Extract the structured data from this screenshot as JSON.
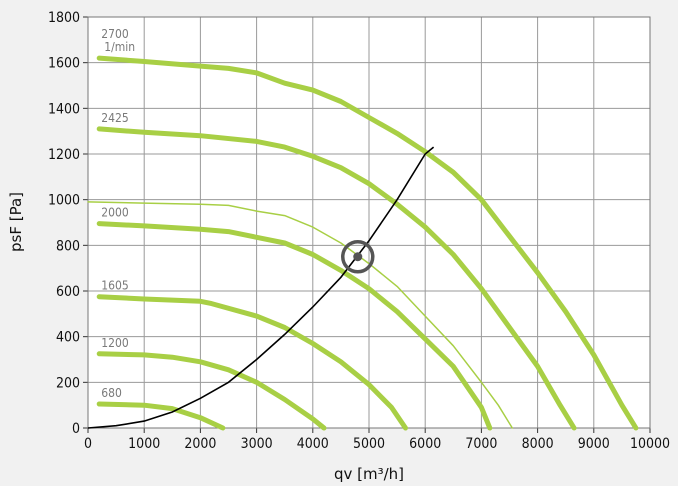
{
  "chart_data": {
    "type": "line",
    "title": "",
    "xlabel": "qv [m³/h]",
    "ylabel": "psF [Pa]",
    "xlim": [
      0,
      10000
    ],
    "ylim": [
      0,
      1800
    ],
    "xticks": [
      0,
      1000,
      2000,
      3000,
      4000,
      5000,
      6000,
      7000,
      8000,
      9000,
      10000
    ],
    "yticks": [
      0,
      200,
      400,
      600,
      800,
      1000,
      1200,
      1400,
      1600,
      1800
    ],
    "grid": true,
    "curve_color": "#a8cf45",
    "system_curve_color": "#000000",
    "operating_point_color": "#555555",
    "series": [
      {
        "label_lines": [
          "2700",
          "1/min"
        ],
        "style": "thick",
        "points": [
          [
            200,
            1620
          ],
          [
            1000,
            1605
          ],
          [
            2000,
            1585
          ],
          [
            2500,
            1575
          ],
          [
            3000,
            1555
          ],
          [
            3500,
            1510
          ],
          [
            4000,
            1480
          ],
          [
            4500,
            1430
          ],
          [
            5000,
            1360
          ],
          [
            5500,
            1290
          ],
          [
            6000,
            1210
          ],
          [
            6500,
            1120
          ],
          [
            7000,
            1000
          ],
          [
            7500,
            840
          ],
          [
            8000,
            680
          ],
          [
            8500,
            510
          ],
          [
            9000,
            320
          ],
          [
            9500,
            100
          ],
          [
            9750,
            0
          ]
        ]
      },
      {
        "label_lines": [
          "2425"
        ],
        "style": "thick",
        "points": [
          [
            200,
            1310
          ],
          [
            1000,
            1295
          ],
          [
            2000,
            1280
          ],
          [
            3000,
            1255
          ],
          [
            3500,
            1230
          ],
          [
            4000,
            1190
          ],
          [
            4500,
            1140
          ],
          [
            5000,
            1070
          ],
          [
            5500,
            980
          ],
          [
            6000,
            880
          ],
          [
            6500,
            760
          ],
          [
            7000,
            610
          ],
          [
            7500,
            440
          ],
          [
            8000,
            270
          ],
          [
            8400,
            100
          ],
          [
            8650,
            0
          ]
        ]
      },
      {
        "label_lines": [],
        "style": "thin",
        "points": [
          [
            0,
            990
          ],
          [
            1000,
            985
          ],
          [
            2000,
            980
          ],
          [
            2500,
            975
          ],
          [
            3000,
            950
          ],
          [
            3500,
            930
          ],
          [
            4000,
            880
          ],
          [
            4500,
            810
          ],
          [
            5000,
            720
          ],
          [
            5500,
            620
          ],
          [
            6000,
            490
          ],
          [
            6500,
            360
          ],
          [
            7000,
            200
          ],
          [
            7300,
            100
          ],
          [
            7550,
            0
          ]
        ]
      },
      {
        "label_lines": [
          "2000"
        ],
        "style": "thick",
        "points": [
          [
            200,
            895
          ],
          [
            1000,
            885
          ],
          [
            2000,
            870
          ],
          [
            2500,
            860
          ],
          [
            3000,
            835
          ],
          [
            3500,
            810
          ],
          [
            4000,
            760
          ],
          [
            4500,
            690
          ],
          [
            5000,
            610
          ],
          [
            5500,
            510
          ],
          [
            6000,
            390
          ],
          [
            6500,
            270
          ],
          [
            7000,
            90
          ],
          [
            7150,
            0
          ]
        ]
      },
      {
        "label_lines": [
          "1605"
        ],
        "style": "thick",
        "points": [
          [
            200,
            575
          ],
          [
            1000,
            565
          ],
          [
            2000,
            555
          ],
          [
            2200,
            545
          ],
          [
            3000,
            490
          ],
          [
            3500,
            440
          ],
          [
            4000,
            370
          ],
          [
            4500,
            290
          ],
          [
            5000,
            190
          ],
          [
            5400,
            90
          ],
          [
            5650,
            0
          ]
        ]
      },
      {
        "label_lines": [
          "1200"
        ],
        "style": "thick",
        "points": [
          [
            200,
            325
          ],
          [
            1000,
            320
          ],
          [
            1500,
            310
          ],
          [
            2000,
            290
          ],
          [
            2500,
            255
          ],
          [
            3000,
            200
          ],
          [
            3500,
            125
          ],
          [
            4000,
            40
          ],
          [
            4200,
            0
          ]
        ]
      },
      {
        "label_lines": [
          "680"
        ],
        "style": "thick",
        "points": [
          [
            200,
            105
          ],
          [
            1000,
            100
          ],
          [
            1500,
            85
          ],
          [
            2000,
            45
          ],
          [
            2400,
            0
          ]
        ]
      }
    ],
    "system_curve": [
      [
        0,
        0
      ],
      [
        500,
        10
      ],
      [
        1000,
        30
      ],
      [
        1500,
        70
      ],
      [
        2000,
        130
      ],
      [
        2500,
        200
      ],
      [
        3000,
        300
      ],
      [
        3500,
        410
      ],
      [
        4000,
        530
      ],
      [
        4500,
        660
      ],
      [
        5000,
        820
      ],
      [
        5500,
        1000
      ],
      [
        6000,
        1200
      ],
      [
        6150,
        1230
      ]
    ],
    "operating_point": {
      "x": 4800,
      "y": 750
    }
  }
}
